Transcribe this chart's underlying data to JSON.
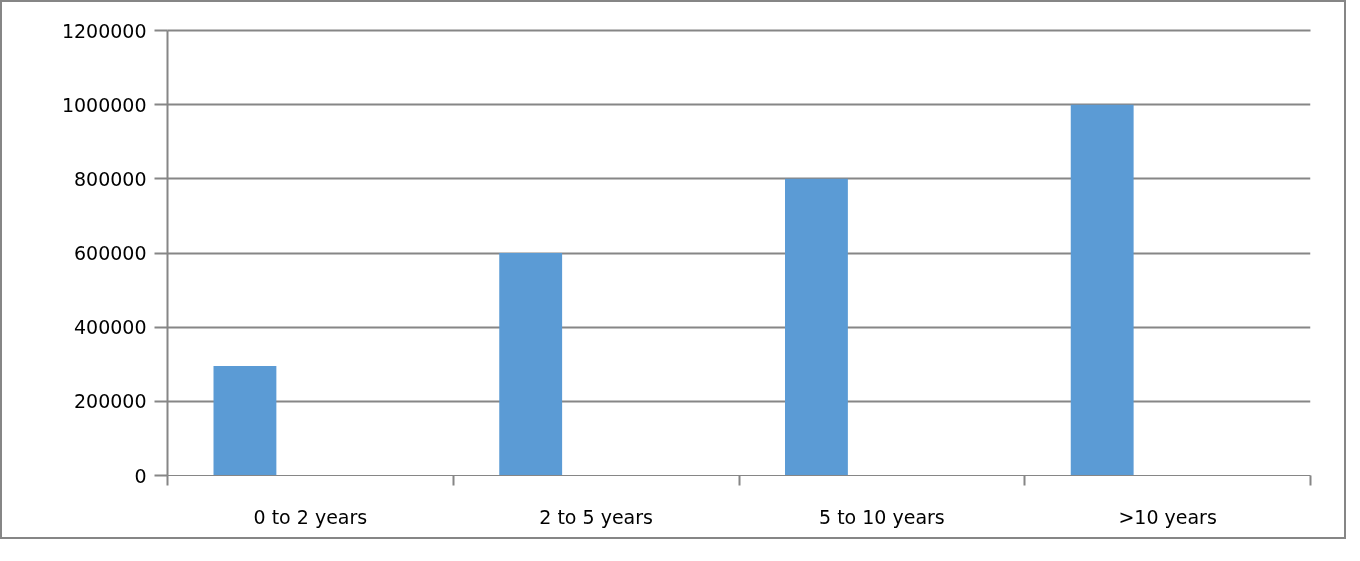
{
  "chart_data": {
    "type": "bar",
    "categories": [
      "0 to 2 years",
      "2 to 5 years",
      "5 to 10 years",
      ">10 years"
    ],
    "values": [
      295000,
      600000,
      800000,
      1000000
    ],
    "color": "#5b9bd5",
    "ylim": [
      0,
      1200000
    ],
    "yticks": [
      0,
      200000,
      400000,
      600000,
      800000,
      1000000,
      1200000
    ],
    "grid": "y"
  }
}
